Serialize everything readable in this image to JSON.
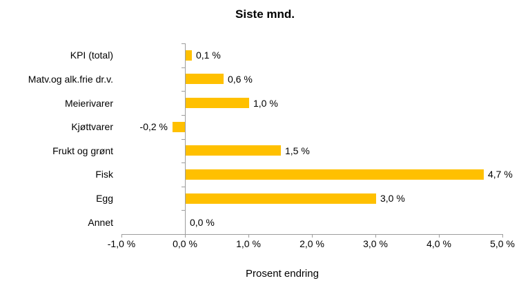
{
  "chart_data": {
    "type": "bar",
    "orientation": "horizontal",
    "title": "Siste mnd.",
    "xlabel": "Prosent endring",
    "categories": [
      "KPI (total)",
      "Matv.og alk.frie dr.v.",
      "Meierivarer",
      "Kjøttvarer",
      "Frukt og grønt",
      "Fisk",
      "Egg",
      "Annet"
    ],
    "values": [
      0.1,
      0.6,
      1.0,
      -0.2,
      1.5,
      4.7,
      3.0,
      0.0
    ],
    "value_labels": [
      "0,1 %",
      "0,6 %",
      "1,0 %",
      "-0,2 %",
      "1,5 %",
      "4,7 %",
      "3,0 %",
      "0,0 %"
    ],
    "xlim": [
      -1.0,
      5.0
    ],
    "x_ticks": [
      -1,
      0,
      1,
      2,
      3,
      4,
      5
    ],
    "x_tick_labels": [
      "-1,0 %",
      "0,0 %",
      "1,0 %",
      "2,0 %",
      "3,0 %",
      "4,0 %",
      "5,0 %"
    ],
    "bar_color": "#FFC000",
    "axis_color": "#9C9C9C",
    "text_color": "#000000",
    "grid": false,
    "legend": false
  }
}
